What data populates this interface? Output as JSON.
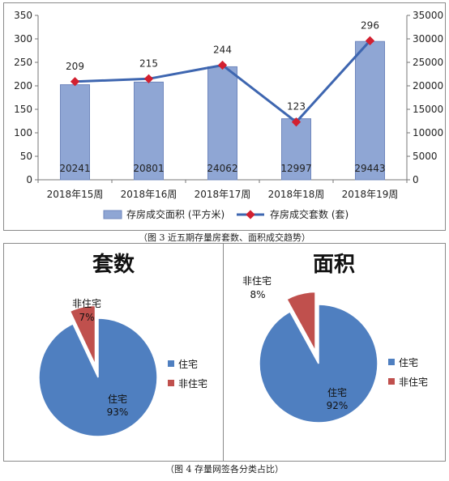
{
  "chart_data": [
    {
      "type": "bar+line",
      "categories": [
        "2018年15周",
        "2018年16周",
        "2018年17周",
        "2018年18周",
        "2018年19周"
      ],
      "series": [
        {
          "name": "存房成交面积 (平方米)",
          "type": "bar",
          "axis": "right",
          "values": [
            20241,
            20801,
            24062,
            12997,
            29443
          ],
          "color": "#8fa6d4"
        },
        {
          "name": "存房成交套数 (套)",
          "type": "line",
          "axis": "left",
          "values": [
            209,
            215,
            244,
            123,
            296
          ],
          "color": "#3e66b0",
          "marker_color": "#d22030"
        }
      ],
      "ylim_left": [
        0,
        350
      ],
      "yticks_left": [
        "0",
        "50",
        "100",
        "150",
        "200",
        "250",
        "300",
        "350"
      ],
      "ylim_right": [
        0,
        35000
      ],
      "yticks_right": [
        "0",
        "5000",
        "10000",
        "15000",
        "20000",
        "25000",
        "30000",
        "35000"
      ],
      "legend_position": "bottom",
      "grid": false
    },
    {
      "type": "pie",
      "title": "套数",
      "labels": [
        "住宅",
        "非住宅"
      ],
      "values": [
        93,
        7
      ],
      "value_labels": [
        "93%",
        "7%"
      ],
      "colors": [
        "#4f7fc0",
        "#c0504d"
      ],
      "legend_position": "right"
    },
    {
      "type": "pie",
      "title": "面积",
      "labels": [
        "住宅",
        "非住宅"
      ],
      "values": [
        92,
        8
      ],
      "value_labels": [
        "92%",
        "8%"
      ],
      "colors": [
        "#4f7fc0",
        "#c0504d"
      ],
      "legend_position": "right"
    }
  ],
  "captions": {
    "fig3": "（图 3 近五期存量房套数、面积成交趋势）",
    "fig4": "（图 4 存量网签各分类占比）"
  }
}
